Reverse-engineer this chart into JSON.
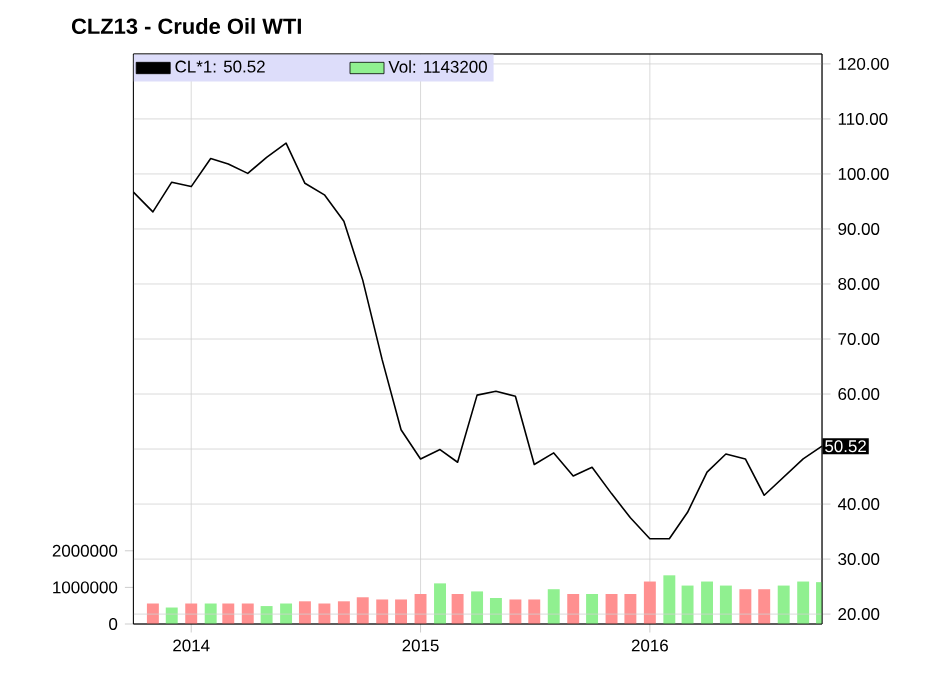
{
  "chart_data": {
    "type": "line",
    "title": "CLZ13 - Crude Oil WTI",
    "x": [
      "2013-10",
      "2013-11",
      "2013-12",
      "2014-01",
      "2014-02",
      "2014-03",
      "2014-04",
      "2014-05",
      "2014-06",
      "2014-07",
      "2014-08",
      "2014-09",
      "2014-10",
      "2014-11",
      "2014-12",
      "2015-01",
      "2015-02",
      "2015-03",
      "2015-04",
      "2015-05",
      "2015-06",
      "2015-07",
      "2015-08",
      "2015-09",
      "2015-10",
      "2015-11",
      "2015-12",
      "2016-01",
      "2016-02",
      "2016-03",
      "2016-04",
      "2016-05",
      "2016-06",
      "2016-07",
      "2016-08",
      "2016-09",
      "2016-10"
    ],
    "series": [
      {
        "name": "CL*1: 50.52",
        "axis": "y2",
        "color": "#000000",
        "values": [
          96.7,
          93.1,
          98.5,
          97.7,
          102.8,
          101.8,
          100.1,
          103.0,
          105.6,
          98.3,
          96.2,
          91.4,
          80.7,
          66.2,
          53.5,
          48.2,
          49.9,
          47.6,
          59.8,
          60.5,
          59.6,
          47.2,
          49.3,
          45.1,
          46.7,
          41.9,
          37.5,
          33.7,
          33.7,
          38.5,
          45.8,
          49.1,
          48.2,
          41.6,
          44.9,
          48.2,
          50.52
        ],
        "value_labels": [
          null,
          null,
          null,
          null,
          null,
          null,
          null,
          null,
          null,
          null,
          null,
          null,
          null,
          null,
          null,
          null,
          null,
          null,
          null,
          null,
          null,
          null,
          null,
          null,
          null,
          null,
          null,
          null,
          null,
          null,
          null,
          null,
          null,
          null,
          null,
          null,
          "50.52"
        ]
      },
      {
        "name": "Vol: 1143200",
        "type": "bar",
        "axis": "y",
        "color": "#90f090",
        "x": [
          "2013-11",
          "2013-12",
          "2014-01",
          "2014-02",
          "2014-03",
          "2014-04",
          "2014-05",
          "2014-06",
          "2014-07",
          "2014-08",
          "2014-09",
          "2014-10",
          "2014-11",
          "2014-12",
          "2015-01",
          "2015-02",
          "2015-03",
          "2015-04",
          "2015-05",
          "2015-06",
          "2015-07",
          "2015-08",
          "2015-09",
          "2015-10",
          "2015-11",
          "2015-12",
          "2016-01",
          "2016-02",
          "2016-03",
          "2016-04",
          "2016-05",
          "2016-06",
          "2016-07",
          "2016-08",
          "2016-09",
          "2016-10"
        ],
        "values": [
          560000,
          450000,
          560000,
          560000,
          560000,
          560000,
          490000,
          560000,
          620000,
          560000,
          620000,
          730000,
          670000,
          670000,
          820000,
          1110000,
          820000,
          890000,
          710000,
          670000,
          670000,
          950000,
          820000,
          820000,
          820000,
          820000,
          1160000,
          1330000,
          1050000,
          1160000,
          1050000,
          950000,
          950000,
          1050000,
          1160000,
          1143200
        ],
        "colors": [
          "#ff9090",
          "#90f090",
          "#ff9090",
          "#90f090",
          "#ff9090",
          "#ff9090",
          "#90f090",
          "#90f090",
          "#ff9090",
          "#ff9090",
          "#ff9090",
          "#ff9090",
          "#ff9090",
          "#ff9090",
          "#ff9090",
          "#90f090",
          "#ff9090",
          "#90f090",
          "#90f090",
          "#ff9090",
          "#ff9090",
          "#90f090",
          "#ff9090",
          "#90f090",
          "#ff9090",
          "#ff9090",
          "#ff9090",
          "#90f090",
          "#90f090",
          "#90f090",
          "#90f090",
          "#ff9090",
          "#ff9090",
          "#90f090",
          "#90f090",
          "#90f090"
        ]
      }
    ],
    "xlim": [
      "2013-10",
      "2016-10"
    ],
    "xticks": [
      {
        "value": "2014-01",
        "label": "2014"
      },
      {
        "value": "2015-01",
        "label": "2015"
      },
      {
        "value": "2016-01",
        "label": "2016"
      }
    ],
    "ylim": [
      0,
      15570000
    ],
    "yticks": [
      0,
      1000000,
      2000000
    ],
    "y2lim": [
      18.2,
      121.8
    ],
    "y2ticks": [
      {
        "value": 20,
        "label": "20.00"
      },
      {
        "value": 30,
        "label": "30.00"
      },
      {
        "value": 40,
        "label": "40.00"
      },
      {
        "value": 50,
        "label": null
      },
      {
        "value": 60,
        "label": "60.00"
      },
      {
        "value": 70,
        "label": "70.00"
      },
      {
        "value": 80,
        "label": "80.00"
      },
      {
        "value": 90,
        "label": "90.00"
      },
      {
        "value": 100,
        "label": "100.00"
      },
      {
        "value": 110,
        "label": "110.00"
      },
      {
        "value": 120,
        "label": "120.00"
      }
    ],
    "grid": true,
    "legend": "top left"
  }
}
